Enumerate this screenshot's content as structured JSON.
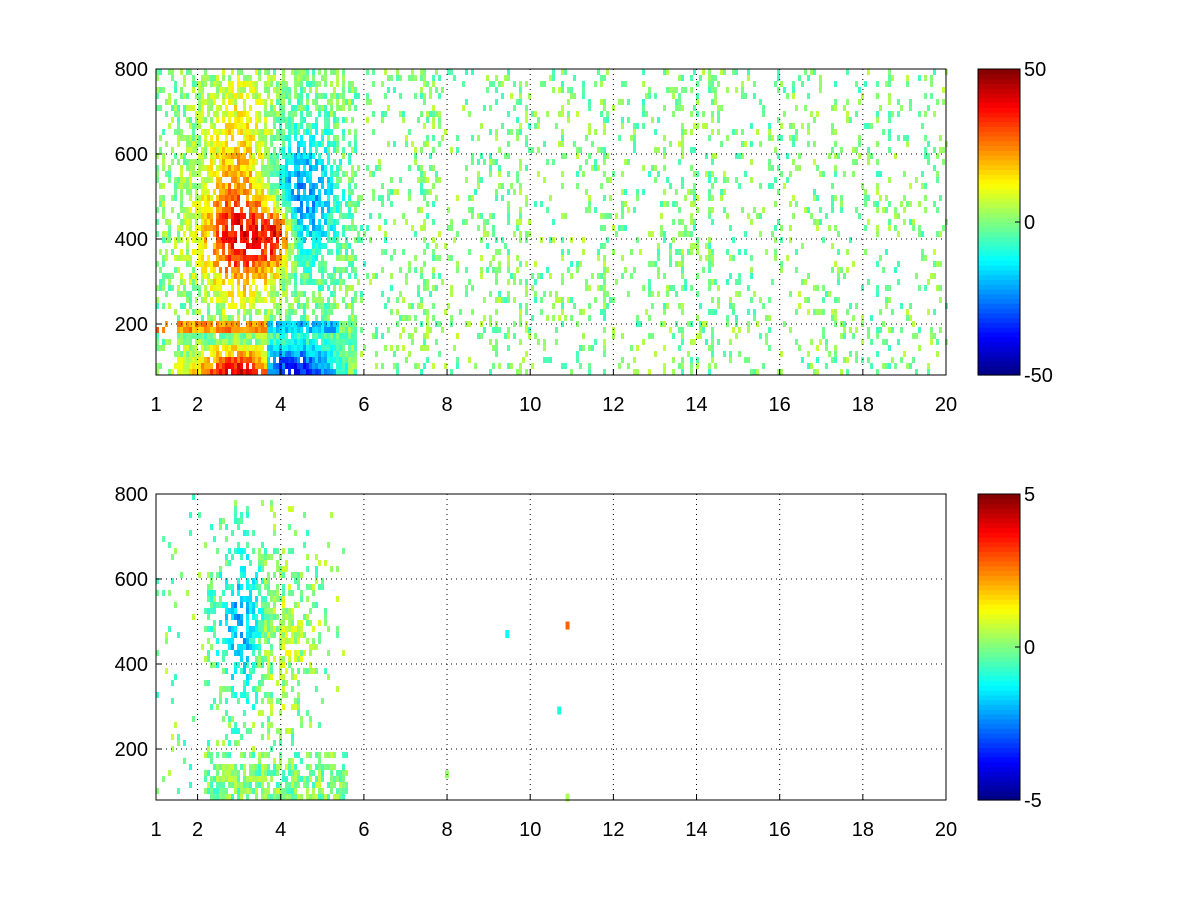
{
  "chart_data": [
    {
      "type": "heatmap",
      "title": "",
      "xlabel": "",
      "ylabel": "",
      "xlim": [
        1,
        20
      ],
      "ylim": [
        80,
        800
      ],
      "xticks": [
        1,
        2,
        4,
        6,
        8,
        10,
        12,
        14,
        16,
        18,
        20
      ],
      "yticks": [
        200,
        400,
        600,
        800
      ],
      "grid": true,
      "colormap": "jet",
      "clim": [
        -50,
        50
      ],
      "colorbar_ticks": [
        -50,
        0,
        50
      ],
      "values_description": "dense scattered cells over full range; strong positive (red/orange) band near x 2.5-4, y 300-450 and y < 160; negative (blue/cyan) near x 3.5-5.5, y 400-600 and y < 200; sparse green/cyan/yellow speckle beyond x 6",
      "seed": 11
    },
    {
      "type": "heatmap",
      "title": "",
      "xlabel": "",
      "ylabel": "",
      "xlim": [
        1,
        20
      ],
      "ylim": [
        80,
        800
      ],
      "xticks": [
        1,
        2,
        4,
        6,
        8,
        10,
        12,
        14,
        16,
        18,
        20
      ],
      "yticks": [
        200,
        400,
        600,
        800
      ],
      "grid": true,
      "colormap": "jet",
      "clim": [
        -5,
        5
      ],
      "colorbar_ticks": [
        -5,
        0,
        5
      ],
      "values_description": "cells concentrated at x 2-5.5, mostly near 0 (green), a few negative (blue) near x 3, y 400-600; isolated cells near x 8, 9.4, 10.6, 10.8",
      "seed": 29
    }
  ]
}
